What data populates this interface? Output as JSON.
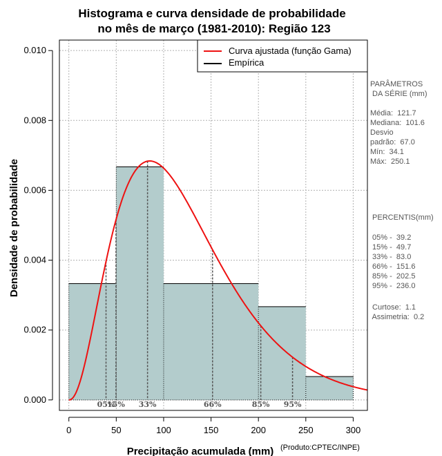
{
  "chart_data": {
    "type": "bar",
    "title": "Histograma e curva densidade de probabilidade",
    "subtitle": "no mês de março (1981-2010): Região 123",
    "xlabel": "Precipitação acumulada (mm)",
    "ylabel": "Densidade de probabilidade",
    "credit": "(Produto:CPTEC/INPE)",
    "xlim": [
      -10,
      315
    ],
    "ylim": [
      -0.0003,
      0.0103
    ],
    "x_ticks": [
      0,
      50,
      100,
      150,
      200,
      250,
      300
    ],
    "x_tick_labels": [
      "0",
      "50",
      "100",
      "150",
      "200",
      "250",
      "300"
    ],
    "y_ticks": [
      0.0,
      0.002,
      0.004,
      0.006,
      0.008,
      0.01
    ],
    "y_tick_labels": [
      "0.000",
      "0.002",
      "0.004",
      "0.006",
      "0.008",
      "0.010"
    ],
    "grid": true,
    "bins": [
      {
        "start": 0,
        "end": 50,
        "density": 0.00333
      },
      {
        "start": 50,
        "end": 100,
        "density": 0.00667
      },
      {
        "start": 100,
        "end": 200,
        "density": 0.00333
      },
      {
        "start": 200,
        "end": 250,
        "density": 0.00267
      },
      {
        "start": 250,
        "end": 300,
        "density": 0.00067
      }
    ],
    "curve": {
      "name": "Curva ajustada (função Gama)",
      "dist": "gamma",
      "shape": 3.3,
      "scale": 37.1,
      "x_start": 0,
      "x_end": 315
    },
    "legend": [
      {
        "label": "Curva ajustada (função Gama)",
        "color": "#ee1111"
      },
      {
        "label": "Empírica",
        "color": "#000000"
      }
    ],
    "legend_position": "top-right",
    "percentile_markers": [
      {
        "label": "05%",
        "x": 39.2
      },
      {
        "label": "15%",
        "x": 49.7
      },
      {
        "label": "33%",
        "x": 83.0
      },
      {
        "label": "66%",
        "x": 151.6
      },
      {
        "label": "85%",
        "x": 202.5
      },
      {
        "label": "95%",
        "x": 236.0
      }
    ],
    "colors": {
      "bar_fill": "#b3cccc",
      "curve": "#ee1111",
      "marker": "#555555"
    }
  },
  "stats": {
    "heading": "PARÂMETROS\n DA SÉRIE (mm)",
    "body": "Média:  121.7\nMediana:  101.6\nDesvio\npadrão:  67.0\nMín:  34.1\nMáx:  250.1"
  },
  "percentiles": {
    "heading": " PERCENTIS(mm)",
    "body": " 05% -  39.2\n 15% -  49.7\n 33% -  83.0\n 66% -  151.6\n 85% -  202.5\n 95% -  236.0"
  },
  "shape": {
    "body": " Curtose:  1.1\n Assimetria:  0.2"
  }
}
